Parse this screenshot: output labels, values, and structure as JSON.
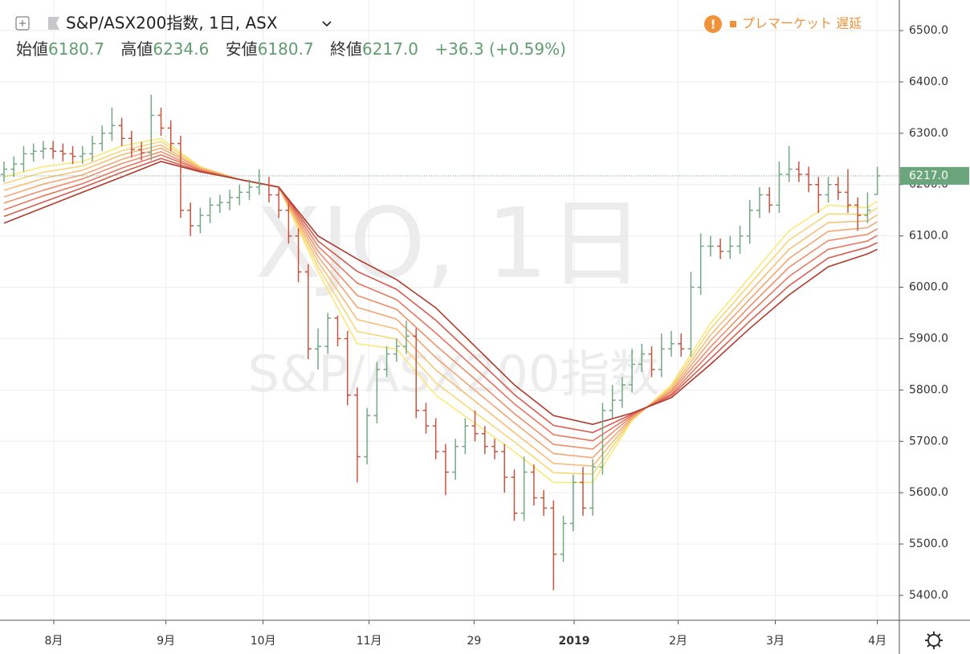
{
  "chart_data": {
    "type": "ohlc",
    "symbol_title": "S&P/ASX200指数, 1日, ASX",
    "market_status": "プレマーケット 遅延",
    "watermark": "XJO, 1日",
    "watermark_sub": "S&P/ASX200指数",
    "open_text": "始値",
    "high_text": "高値",
    "low_text": "安値",
    "close_text": "終値",
    "close_label": "6217.0",
    "change": "+36.3 (+0.59%)",
    "up_color": "#74a883",
    "down_color": "#c85440",
    "last_color": "#6aa57c",
    "grid": true,
    "xlim": [
      -0.41,
      91.24
    ],
    "ylim": [
      5351.5,
      6559.5
    ],
    "xticks": [
      {
        "value": 5.07,
        "label": "8月"
      },
      {
        "value": 16.5,
        "label": "9月"
      },
      {
        "value": 26.4,
        "label": "10月"
      },
      {
        "value": 37.2,
        "label": "11月"
      },
      {
        "value": 47.9,
        "label": "29"
      },
      {
        "value": 58.1,
        "label": "2019"
      },
      {
        "value": 68.7,
        "label": "2月"
      },
      {
        "value": 78.6,
        "label": "3月"
      },
      {
        "value": 89,
        "label": "4月"
      }
    ],
    "yticks": [
      {
        "value": 5400,
        "label": "5400.0"
      },
      {
        "value": 5500,
        "label": "5500.0"
      },
      {
        "value": 5600,
        "label": "5600.0"
      },
      {
        "value": 5700,
        "label": "5700.0"
      },
      {
        "value": 5800,
        "label": "5800.0"
      },
      {
        "value": 5900,
        "label": "5900.0"
      },
      {
        "value": 6000,
        "label": "6000.0"
      },
      {
        "value": 6100,
        "label": "6100.0"
      },
      {
        "value": 6200,
        "label": "6200.0"
      },
      {
        "value": 6300,
        "label": "6300.0"
      },
      {
        "value": 6400,
        "label": "6400.0"
      },
      {
        "value": 6500,
        "label": "6500.0"
      }
    ],
    "x": [
      0,
      1,
      2,
      3,
      4,
      5,
      6,
      7,
      8,
      9,
      10,
      11,
      12,
      13,
      14,
      15,
      16,
      17,
      18,
      19,
      20,
      21,
      22,
      23,
      24,
      25,
      26,
      27,
      28,
      29,
      30,
      31,
      32,
      33,
      34,
      35,
      36,
      37,
      38,
      39,
      40,
      41,
      42,
      43,
      44,
      45,
      46,
      47,
      48,
      49,
      50,
      51,
      52,
      53,
      54,
      55,
      56,
      57,
      58,
      59,
      60,
      61,
      62,
      63,
      64,
      65,
      66,
      67,
      68,
      69,
      70,
      71,
      72,
      73,
      74,
      75,
      76,
      77,
      78,
      79,
      80,
      81,
      82,
      83,
      84,
      85,
      86,
      87,
      88,
      89
    ],
    "open": [
      6220,
      6230,
      6240,
      6260,
      6265,
      6270,
      6265,
      6260,
      6255,
      6260,
      6280,
      6300,
      6315,
      6290,
      6268,
      6262,
      6335,
      6310,
      6280,
      6150,
      6120,
      6140,
      6160,
      6165,
      6175,
      6185,
      6195,
      6200,
      6180,
      6150,
      6100,
      6030,
      5880,
      5885,
      5940,
      5900,
      5790,
      5670,
      5750,
      5840,
      5870,
      5885,
      5905,
      5760,
      5730,
      5680,
      5640,
      5690,
      5730,
      5715,
      5690,
      5680,
      5630,
      5560,
      5640,
      5590,
      5570,
      5480,
      5540,
      5620,
      5570,
      5650,
      5760,
      5780,
      5810,
      5850,
      5870,
      5840,
      5880,
      5890,
      5880,
      6000,
      6080,
      6080,
      6070,
      6080,
      6100,
      6150,
      6180,
      6160,
      6220,
      6230,
      6220,
      6200,
      6180,
      6200,
      6185,
      6160,
      6140,
      6180.7
    ],
    "high": [
      6245,
      6255,
      6275,
      6280,
      6285,
      6285,
      6280,
      6275,
      6275,
      6295,
      6315,
      6350,
      6330,
      6305,
      6283,
      6375,
      6350,
      6325,
      6295,
      6165,
      6155,
      6175,
      6180,
      6190,
      6200,
      6210,
      6230,
      6215,
      6195,
      6165,
      6115,
      6045,
      5920,
      5950,
      5945,
      5915,
      5805,
      5765,
      5855,
      5885,
      5900,
      5935,
      5920,
      5775,
      5745,
      5695,
      5705,
      5745,
      5760,
      5730,
      5705,
      5695,
      5645,
      5670,
      5655,
      5605,
      5585,
      5555,
      5635,
      5650,
      5665,
      5775,
      5810,
      5825,
      5880,
      5890,
      5885,
      5910,
      5915,
      5910,
      6030,
      6105,
      6100,
      6095,
      6100,
      6120,
      6170,
      6195,
      6195,
      6245,
      6275,
      6245,
      6235,
      6215,
      6215,
      6215,
      6230,
      6175,
      6185,
      6234.6
    ],
    "low": [
      6205,
      6215,
      6225,
      6245,
      6250,
      6250,
      6245,
      6240,
      6240,
      6245,
      6265,
      6285,
      6275,
      6253,
      6247,
      6247,
      6295,
      6265,
      6135,
      6100,
      6105,
      6125,
      6145,
      6150,
      6160,
      6170,
      6180,
      6165,
      6135,
      6085,
      6010,
      5860,
      5840,
      5870,
      5885,
      5770,
      5620,
      5655,
      5735,
      5825,
      5855,
      5870,
      5745,
      5715,
      5665,
      5595,
      5625,
      5675,
      5700,
      5675,
      5665,
      5600,
      5545,
      5545,
      5575,
      5555,
      5410,
      5465,
      5525,
      5555,
      5555,
      5635,
      5745,
      5765,
      5795,
      5835,
      5825,
      5825,
      5865,
      5865,
      5865,
      5985,
      6060,
      6055,
      6055,
      6065,
      6085,
      6135,
      6145,
      6145,
      6205,
      6205,
      6185,
      6145,
      6165,
      6170,
      6145,
      6110,
      6125,
      6180.7
    ],
    "close": [
      6230,
      6240,
      6260,
      6265,
      6270,
      6265,
      6260,
      6255,
      6260,
      6280,
      6300,
      6315,
      6290,
      6268,
      6262,
      6335,
      6310,
      6280,
      6150,
      6120,
      6140,
      6160,
      6165,
      6175,
      6185,
      6195,
      6200,
      6180,
      6150,
      6100,
      6030,
      5880,
      5885,
      5940,
      5900,
      5790,
      5670,
      5750,
      5840,
      5870,
      5885,
      5905,
      5760,
      5730,
      5680,
      5640,
      5690,
      5730,
      5715,
      5690,
      5680,
      5630,
      5560,
      5640,
      5590,
      5570,
      5480,
      5540,
      5620,
      5570,
      5650,
      5760,
      5780,
      5810,
      5850,
      5870,
      5840,
      5880,
      5890,
      5880,
      6000,
      6080,
      6080,
      6070,
      6080,
      6100,
      6150,
      6180,
      6160,
      6220,
      6230,
      6220,
      6200,
      6180,
      6200,
      6185,
      6160,
      6140,
      6150,
      6217.0
    ],
    "ma_x": [
      0,
      4,
      8,
      12,
      16,
      20,
      24,
      28,
      32,
      36,
      40,
      44,
      48,
      52,
      56,
      60,
      64,
      68,
      72,
      76,
      80,
      84,
      88,
      89
    ],
    "ma": [
      {
        "color": "#f9e97a",
        "values": [
          6215,
          6235,
          6245,
          6275,
          6290,
          6235,
          6210,
          6195,
          6030,
          5890,
          5880,
          5790,
          5735,
          5680,
          5620,
          5620,
          5740,
          5810,
          5930,
          6020,
          6110,
          6160,
          6155,
          6168
        ]
      },
      {
        "color": "#f8d67b",
        "values": [
          6202,
          6224,
          6236,
          6266,
          6284,
          6234,
          6210,
          6195,
          6040,
          5914,
          5899,
          5814,
          5756,
          5699,
          5639,
          5636,
          5742,
          5806,
          5919,
          6006,
          6092,
          6143,
          6142,
          6155
        ]
      },
      {
        "color": "#f5bf79",
        "values": [
          6189,
          6212,
          6228,
          6258,
          6277,
          6232,
          6210,
          6195,
          6050,
          5937,
          5919,
          5839,
          5778,
          5717,
          5657,
          5652,
          5744,
          5803,
          5907,
          5991,
          6074,
          6126,
          6129,
          6141
        ]
      },
      {
        "color": "#f2a774",
        "values": [
          6176,
          6201,
          6219,
          6249,
          6271,
          6231,
          6210,
          6195,
          6060,
          5961,
          5938,
          5863,
          5799,
          5736,
          5676,
          5668,
          5746,
          5799,
          5896,
          5977,
          6056,
          6109,
          6116,
          6128
        ]
      },
      {
        "color": "#ee8f6c",
        "values": [
          6164,
          6189,
          6211,
          6241,
          6264,
          6229,
          6210,
          6195,
          6070,
          5984,
          5957,
          5887,
          5821,
          5754,
          5694,
          5685,
          5749,
          5796,
          5884,
          5963,
          6039,
          6091,
          6103,
          6114
        ]
      },
      {
        "color": "#e67762",
        "values": [
          6151,
          6178,
          6202,
          6232,
          6258,
          6228,
          6210,
          6195,
          6080,
          6008,
          5976,
          5911,
          5842,
          5773,
          5713,
          5701,
          5751,
          5792,
          5873,
          5949,
          6021,
          6074,
          6090,
          6101
        ]
      },
      {
        "color": "#d65d4f",
        "values": [
          6138,
          6166,
          6194,
          6224,
          6251,
          6226,
          6210,
          6195,
          6090,
          6031,
          5996,
          5936,
          5864,
          5791,
          5731,
          5717,
          5753,
          5789,
          5861,
          5934,
          6003,
          6057,
          6078,
          6087
        ]
      },
      {
        "color": "#b03a2a",
        "values": [
          6125,
          6155,
          6185,
          6215,
          6245,
          6225,
          6210,
          6195,
          6100,
          6055,
          6015,
          5960,
          5885,
          5810,
          5750,
          5733,
          5755,
          5785,
          5850,
          5920,
          5985,
          6040,
          6065,
          6074
        ]
      }
    ]
  }
}
